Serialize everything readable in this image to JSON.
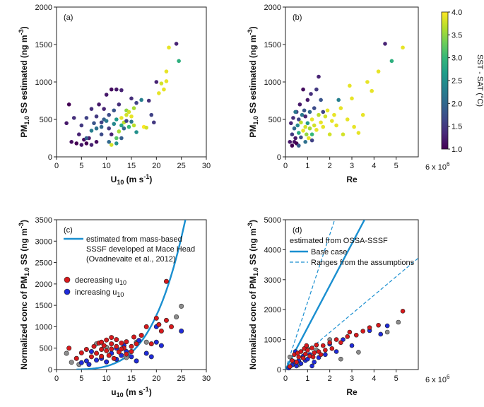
{
  "chart_data": [
    {
      "panel": "a",
      "type": "scatter",
      "label": "(a)",
      "xlabel": "U",
      "xlabel_sub": "10",
      "xlabel_units": " (m s",
      "xlabel_units_sup": "-1",
      "xlabel_close": ")",
      "ylabel": "PM",
      "ylabel_sub": "1.0",
      "ylabel_rest": " SS estimated (ng m",
      "ylabel_sup": "-3",
      "ylabel_close": ")",
      "xlim": [
        0,
        30
      ],
      "ylim": [
        0,
        2000
      ],
      "xticks": [
        0,
        5,
        10,
        15,
        20,
        25,
        30
      ],
      "yticks": [
        0,
        500,
        1000,
        1500,
        2000
      ],
      "color_by": "SST - SAT (°C)",
      "points": [
        [
          2,
          450,
          1.2
        ],
        [
          2.5,
          700,
          1.0
        ],
        [
          3,
          200,
          1.1
        ],
        [
          3.5,
          520,
          1.4
        ],
        [
          4,
          180,
          1.0
        ],
        [
          4.5,
          300,
          1.3
        ],
        [
          5,
          160,
          1.2
        ],
        [
          5,
          420,
          1.5
        ],
        [
          5.5,
          230,
          1.1
        ],
        [
          6,
          520,
          1.6
        ],
        [
          6,
          180,
          1.0
        ],
        [
          6.5,
          250,
          1.2
        ],
        [
          7,
          640,
          1.4
        ],
        [
          7,
          160,
          1.3
        ],
        [
          7.5,
          450,
          1.8
        ],
        [
          8,
          540,
          1.5
        ],
        [
          8,
          200,
          1.1
        ],
        [
          8.5,
          700,
          1.2
        ],
        [
          9,
          400,
          2.0
        ],
        [
          9,
          460,
          1.6
        ],
        [
          9.5,
          640,
          1.3
        ],
        [
          9.5,
          500,
          1.9
        ],
        [
          10,
          480,
          2.2
        ],
        [
          10,
          830,
          1.2
        ],
        [
          10.5,
          380,
          1.5
        ],
        [
          10.5,
          560,
          1.7
        ],
        [
          11,
          900,
          1.1
        ],
        [
          11,
          300,
          1.3
        ],
        [
          11.5,
          440,
          2.4
        ],
        [
          11.5,
          620,
          1.8
        ],
        [
          12,
          900,
          1.2
        ],
        [
          12,
          500,
          2.6
        ],
        [
          12,
          250,
          3.2
        ],
        [
          12.5,
          340,
          3.6
        ],
        [
          12.5,
          700,
          1.4
        ],
        [
          13,
          890,
          1.3
        ],
        [
          13,
          420,
          2.8
        ],
        [
          13,
          520,
          3.9
        ],
        [
          13.5,
          460,
          3.7
        ],
        [
          13.5,
          380,
          2.0
        ],
        [
          14,
          560,
          3.8
        ],
        [
          14,
          480,
          1.6
        ],
        [
          14,
          620,
          3.5
        ],
        [
          14.5,
          400,
          3.0
        ],
        [
          14.5,
          600,
          3.8
        ],
        [
          15,
          470,
          2.2
        ],
        [
          15,
          540,
          3.9
        ],
        [
          15,
          780,
          1.4
        ],
        [
          15.5,
          420,
          3.7
        ],
        [
          15.5,
          650,
          3.6
        ],
        [
          16,
          720,
          1.6
        ],
        [
          16,
          330,
          2.5
        ],
        [
          17,
          760,
          2.3
        ],
        [
          17.5,
          400,
          4.0
        ],
        [
          18,
          390,
          3.8
        ],
        [
          18.5,
          750,
          1.4
        ],
        [
          19,
          560,
          1.6
        ],
        [
          19.5,
          460,
          1.5
        ],
        [
          20,
          1000,
          1.3
        ],
        [
          20.5,
          850,
          3.9
        ],
        [
          21,
          980,
          3.8
        ],
        [
          21.5,
          900,
          3.9
        ],
        [
          22,
          1140,
          3.9
        ],
        [
          22,
          1010,
          3.9
        ],
        [
          22.5,
          1460,
          3.9
        ],
        [
          24,
          1510,
          1.3
        ],
        [
          24.5,
          1280,
          2.9
        ],
        [
          10.5,
          200,
          2.0
        ],
        [
          11,
          160,
          3.8
        ],
        [
          12,
          180,
          2.5
        ],
        [
          13,
          250,
          1.9
        ],
        [
          9,
          300,
          1.7
        ],
        [
          7,
          350,
          2.3
        ],
        [
          8,
          380,
          2.1
        ],
        [
          6,
          250,
          1.9
        ]
      ]
    },
    {
      "panel": "b",
      "type": "scatter",
      "label": "(b)",
      "xlabel": "Re",
      "xlim": [
        0,
        6
      ],
      "x_multiplier": "6 x 10",
      "x_multiplier_sup": "6",
      "ylabel": "PM",
      "ylabel_sub": "1.0",
      "ylabel_rest": " SS estimated (ng m",
      "ylabel_sup": "-3",
      "ylabel_close": ")",
      "ylim": [
        0,
        2000
      ],
      "xticks": [
        0,
        1,
        2,
        3,
        4,
        5
      ],
      "yticks": [
        0,
        500,
        1000,
        1500,
        2000
      ],
      "colorbar": {
        "label": "SST - SAT (°C)",
        "min": 1.0,
        "max": 4.0,
        "ticks": [
          "1.0",
          "1.5",
          "2.0",
          "2.5",
          "3.0",
          "3.5",
          "4.0"
        ]
      },
      "points": [
        [
          0.2,
          200,
          1.2
        ],
        [
          0.25,
          450,
          1.3
        ],
        [
          0.3,
          150,
          1.0
        ],
        [
          0.3,
          300,
          1.5
        ],
        [
          0.35,
          520,
          1.4
        ],
        [
          0.4,
          200,
          1.1
        ],
        [
          0.4,
          380,
          2.0
        ],
        [
          0.45,
          250,
          1.2
        ],
        [
          0.5,
          600,
          1.4
        ],
        [
          0.5,
          180,
          1.0
        ],
        [
          0.55,
          420,
          2.4
        ],
        [
          0.6,
          500,
          1.6
        ],
        [
          0.6,
          320,
          2.8
        ],
        [
          0.65,
          700,
          1.2
        ],
        [
          0.7,
          260,
          1.7
        ],
        [
          0.7,
          460,
          3.7
        ],
        [
          0.75,
          560,
          2.2
        ],
        [
          0.8,
          350,
          3.9
        ],
        [
          0.8,
          900,
          1.1
        ],
        [
          0.85,
          620,
          1.8
        ],
        [
          0.9,
          400,
          3.8
        ],
        [
          0.9,
          540,
          1.3
        ],
        [
          0.95,
          300,
          3.5
        ],
        [
          1.0,
          760,
          1.2
        ],
        [
          1.0,
          450,
          2.6
        ],
        [
          1.05,
          250,
          3.9
        ],
        [
          1.1,
          600,
          2.0
        ],
        [
          1.1,
          380,
          3.6
        ],
        [
          1.15,
          840,
          1.4
        ],
        [
          1.2,
          500,
          3.9
        ],
        [
          1.2,
          300,
          3.0
        ],
        [
          1.3,
          650,
          1.7
        ],
        [
          1.3,
          420,
          3.8
        ],
        [
          1.4,
          900,
          1.5
        ],
        [
          1.4,
          360,
          3.9
        ],
        [
          1.5,
          560,
          3.7
        ],
        [
          1.5,
          1070,
          1.3
        ],
        [
          1.6,
          460,
          3.9
        ],
        [
          1.6,
          760,
          1.8
        ],
        [
          1.7,
          400,
          3.9
        ],
        [
          1.8,
          540,
          3.8
        ],
        [
          1.9,
          620,
          3.9
        ],
        [
          2.0,
          300,
          3.8
        ],
        [
          2.1,
          480,
          3.9
        ],
        [
          2.2,
          560,
          3.9
        ],
        [
          2.3,
          420,
          3.9
        ],
        [
          2.4,
          760,
          2.3
        ],
        [
          2.5,
          650,
          3.9
        ],
        [
          2.6,
          300,
          3.8
        ],
        [
          2.8,
          500,
          3.9
        ],
        [
          2.9,
          950,
          3.9
        ],
        [
          3.0,
          780,
          3.9
        ],
        [
          3.1,
          400,
          3.9
        ],
        [
          3.3,
          320,
          3.9
        ],
        [
          3.5,
          560,
          3.9
        ],
        [
          3.7,
          1000,
          3.9
        ],
        [
          3.9,
          880,
          3.9
        ],
        [
          4.2,
          1140,
          3.9
        ],
        [
          4.5,
          1510,
          1.3
        ],
        [
          4.8,
          1280,
          2.9
        ],
        [
          5.3,
          1460,
          3.9
        ],
        [
          0.6,
          150,
          1.9
        ],
        [
          0.9,
          200,
          2.1
        ],
        [
          1.2,
          220,
          1.6
        ],
        [
          0.45,
          600,
          2.2
        ],
        [
          1.7,
          600,
          1.6
        ]
      ]
    },
    {
      "panel": "c",
      "type": "scatter",
      "label": "(c)",
      "xlabel": "u",
      "xlabel_sub": "10",
      "xlabel_units": " (m s",
      "xlabel_units_sup": "-1",
      "xlabel_close": ")",
      "ylabel": "Normalized conc of PM",
      "ylabel_sub": "1.0",
      "ylabel_rest": " SS (ng m",
      "ylabel_sup": "-3",
      "ylabel_close": ")",
      "xlim": [
        0,
        30
      ],
      "ylim": [
        0,
        3500
      ],
      "xticks": [
        0,
        5,
        10,
        15,
        20,
        25,
        30
      ],
      "yticks": [
        0,
        500,
        1000,
        1500,
        2000,
        2500,
        3000,
        3500
      ],
      "legend": {
        "line_label_1": "estimated from mass-based",
        "line_label_2": "SSSF developed at Mace Head",
        "line_label_3": "(Ovadnevaite et al., 2012)",
        "decreasing_label": "decreasing u",
        "increasing_label": "increasing u",
        "subscript": "10"
      },
      "colors": {
        "decreasing": "#d7191c",
        "increasing": "#1f2bd8",
        "neutral": "#8c8c8c",
        "curve": "#1a8fd0"
      },
      "curve": {
        "coef": 0.0079,
        "exponent": 4.0,
        "x_start": 4
      },
      "decreasing": [
        [
          2.5,
          500
        ],
        [
          4,
          260
        ],
        [
          5,
          390
        ],
        [
          6,
          470
        ],
        [
          7,
          300
        ],
        [
          7.5,
          540
        ],
        [
          8,
          380
        ],
        [
          8.5,
          620
        ],
        [
          9,
          470
        ],
        [
          9,
          310
        ],
        [
          9.5,
          560
        ],
        [
          10,
          440
        ],
        [
          10,
          690
        ],
        [
          10.5,
          330
        ],
        [
          11,
          600
        ],
        [
          11,
          480
        ],
        [
          11.5,
          260
        ],
        [
          12,
          540
        ],
        [
          12,
          700
        ],
        [
          12.5,
          410
        ],
        [
          13,
          620
        ],
        [
          13.5,
          500
        ],
        [
          14,
          360
        ],
        [
          14,
          650
        ],
        [
          15,
          540
        ],
        [
          15.5,
          760
        ],
        [
          16,
          600
        ],
        [
          17,
          800
        ],
        [
          18,
          1000
        ],
        [
          19,
          600
        ],
        [
          20,
          1200
        ],
        [
          20.5,
          1050
        ],
        [
          21,
          900
        ],
        [
          22,
          2060
        ],
        [
          22,
          1150
        ],
        [
          23,
          1000
        ],
        [
          11,
          750
        ],
        [
          9,
          640
        ],
        [
          13,
          480
        ],
        [
          15,
          420
        ]
      ],
      "increasing": [
        [
          5,
          160
        ],
        [
          6,
          200
        ],
        [
          6.5,
          120
        ],
        [
          7,
          420
        ],
        [
          8,
          220
        ],
        [
          9,
          260
        ],
        [
          10,
          180
        ],
        [
          11,
          380
        ],
        [
          12,
          240
        ],
        [
          13,
          330
        ],
        [
          13.5,
          560
        ],
        [
          14,
          420
        ],
        [
          15,
          300
        ],
        [
          16,
          200
        ],
        [
          16.5,
          680
        ],
        [
          18,
          380
        ],
        [
          19,
          300
        ],
        [
          20,
          640
        ],
        [
          21,
          560
        ],
        [
          25,
          900
        ],
        [
          20,
          1000
        ],
        [
          12,
          500
        ]
      ],
      "neutral": [
        [
          2,
          380
        ],
        [
          3,
          170
        ],
        [
          4.5,
          120
        ],
        [
          8,
          600
        ],
        [
          10,
          520
        ],
        [
          14,
          280
        ],
        [
          18,
          640
        ],
        [
          24,
          1230
        ],
        [
          25,
          1480
        ],
        [
          16,
          640
        ]
      ]
    },
    {
      "panel": "d",
      "type": "scatter",
      "label": "(d)",
      "xlabel": "Re",
      "xlim": [
        0,
        6
      ],
      "x_multiplier": "6 x 10",
      "x_multiplier_sup": "6",
      "ylabel": "Normalized conc of PM",
      "ylabel_sub": "1.0",
      "ylabel_rest": " SS (ng m",
      "ylabel_sup": "-3",
      "ylabel_close": ")",
      "ylim": [
        0,
        5000
      ],
      "xticks": [
        0,
        1,
        2,
        3,
        4,
        5
      ],
      "yticks": [
        0,
        1000,
        2000,
        3000,
        4000,
        5000
      ],
      "legend": {
        "title": "estimated from OSSA-SSSF",
        "base_label": "Base case",
        "range_label": "Ranges from the assumptions"
      },
      "lines": {
        "base_slope": 1400,
        "upper_slope": 2250,
        "lower_slope": 620
      },
      "decreasing": [
        [
          0.2,
          100
        ],
        [
          0.3,
          300
        ],
        [
          0.4,
          500
        ],
        [
          0.5,
          250
        ],
        [
          0.55,
          550
        ],
        [
          0.6,
          420
        ],
        [
          0.7,
          600
        ],
        [
          0.8,
          380
        ],
        [
          0.85,
          700
        ],
        [
          0.9,
          520
        ],
        [
          1.0,
          650
        ],
        [
          1.1,
          450
        ],
        [
          1.2,
          720
        ],
        [
          1.3,
          560
        ],
        [
          1.4,
          820
        ],
        [
          1.5,
          600
        ],
        [
          1.6,
          500
        ],
        [
          1.7,
          800
        ],
        [
          1.8,
          650
        ],
        [
          2.0,
          900
        ],
        [
          2.1,
          700
        ],
        [
          2.3,
          1000
        ],
        [
          2.5,
          900
        ],
        [
          2.8,
          1100
        ],
        [
          2.9,
          1250
        ],
        [
          3.2,
          1150
        ],
        [
          3.5,
          1280
        ],
        [
          3.8,
          1400
        ],
        [
          4.2,
          1480
        ],
        [
          5.3,
          1950
        ],
        [
          0.95,
          800
        ],
        [
          1.25,
          420
        ]
      ],
      "increasing": [
        [
          0.15,
          50
        ],
        [
          0.3,
          150
        ],
        [
          0.4,
          260
        ],
        [
          0.5,
          120
        ],
        [
          0.6,
          300
        ],
        [
          0.7,
          200
        ],
        [
          0.8,
          450
        ],
        [
          0.9,
          300
        ],
        [
          1.0,
          350
        ],
        [
          1.1,
          500
        ],
        [
          1.3,
          250
        ],
        [
          1.5,
          400
        ],
        [
          1.8,
          500
        ],
        [
          2.0,
          850
        ],
        [
          2.3,
          600
        ],
        [
          2.6,
          1000
        ],
        [
          3.0,
          800
        ],
        [
          3.8,
          1300
        ],
        [
          4.3,
          1180
        ],
        [
          4.6,
          1460
        ],
        [
          1.2,
          120
        ],
        [
          0.45,
          600
        ]
      ],
      "neutral": [
        [
          0.2,
          420
        ],
        [
          0.4,
          180
        ],
        [
          0.6,
          160
        ],
        [
          1.0,
          700
        ],
        [
          1.4,
          650
        ],
        [
          2.5,
          350
        ],
        [
          3.3,
          580
        ],
        [
          4.6,
          1250
        ],
        [
          5.1,
          1580
        ],
        [
          2.0,
          1000
        ]
      ]
    }
  ]
}
